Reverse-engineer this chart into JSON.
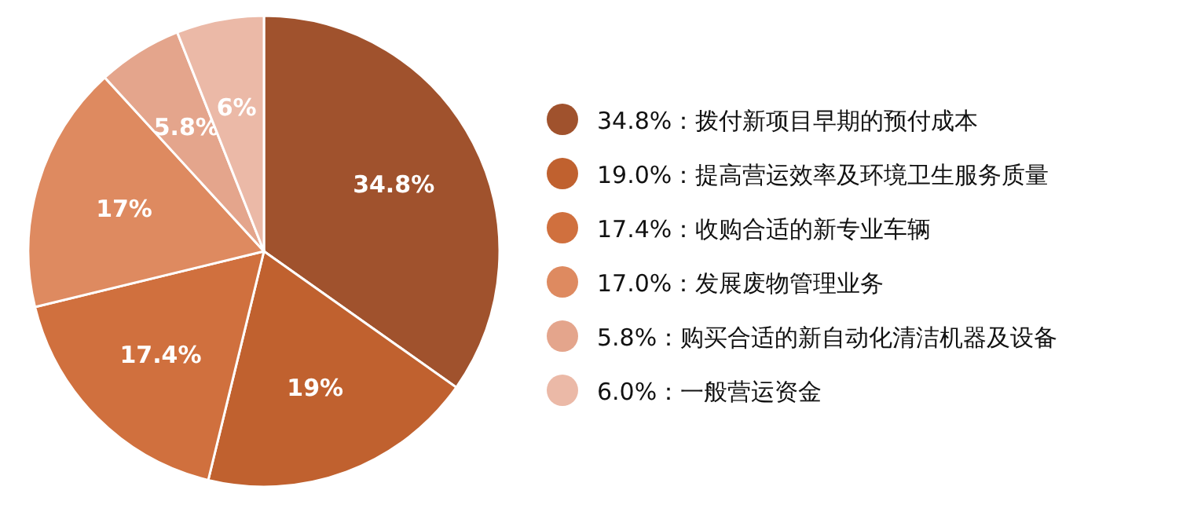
{
  "chart_data": {
    "type": "pie",
    "categories": [
      "34.8%：拨付新项目早期的预付成本",
      "19.0%：提高营运效率及环境卫生服务质量",
      "17.4%：收购合适的新专业车辆",
      "17.0%：发展废物管理业务",
      "5.8%：购买合适的新自动化清洁机器及设备",
      "6.0%：一般营运资金"
    ],
    "values": [
      34.8,
      19,
      17.4,
      17,
      5.8,
      6
    ],
    "value_labels": [
      "34.8%",
      "19%",
      "17.4%",
      "17%",
      "5.8%",
      "6%"
    ],
    "colors": [
      "#a0522d",
      "#c0612f",
      "#d0703e",
      "#de8a60",
      "#e4a58c",
      "#ebb9a7"
    ],
    "legend": "right"
  }
}
